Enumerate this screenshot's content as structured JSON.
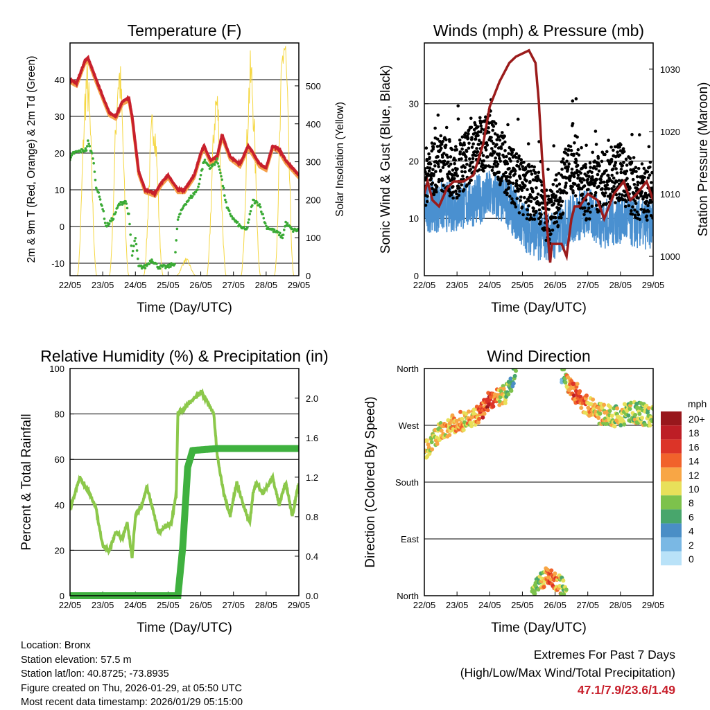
{
  "chart_data": [
    {
      "type": "line",
      "title": "Temperature (F)",
      "xlabel": "Time (Day/UTC)",
      "ylabel": "2m & 9m T (Red, Orange) & 2m Td (Green)",
      "ylabel_right": "Solar Insolation (Yellow)",
      "x_ticks": [
        "22/05",
        "23/05",
        "24/05",
        "25/05",
        "26/05",
        "27/05",
        "28/05",
        "29/05"
      ],
      "xlim": [
        0,
        7
      ],
      "ylim": [
        -13.4,
        50
      ],
      "y_ticks": [
        -10,
        0,
        10,
        20,
        30,
        40
      ],
      "ylim_right": [
        0,
        613
      ],
      "y_ticks_right": [
        0,
        100,
        200,
        300,
        400,
        500
      ],
      "grid": true,
      "series": [
        {
          "name": "2m T",
          "color": "#c8202c",
          "points": [
            [
              0,
              40
            ],
            [
              0.2,
              39
            ],
            [
              0.45,
              45
            ],
            [
              0.55,
              46
            ],
            [
              0.8,
              40
            ],
            [
              1.2,
              31
            ],
            [
              1.4,
              30
            ],
            [
              1.6,
              34
            ],
            [
              1.8,
              35
            ],
            [
              1.9,
              30
            ],
            [
              2.1,
              15
            ],
            [
              2.3,
              10
            ],
            [
              2.6,
              9
            ],
            [
              2.8,
              12
            ],
            [
              3.0,
              14
            ],
            [
              3.3,
              10
            ],
            [
              3.5,
              10
            ],
            [
              3.8,
              14
            ],
            [
              4.0,
              20
            ],
            [
              4.1,
              22
            ],
            [
              4.3,
              18
            ],
            [
              4.5,
              19
            ],
            [
              4.65,
              25
            ],
            [
              4.9,
              19
            ],
            [
              5.2,
              17
            ],
            [
              5.45,
              22
            ],
            [
              5.6,
              20
            ],
            [
              5.8,
              17
            ],
            [
              6.0,
              16
            ],
            [
              6.2,
              22
            ],
            [
              6.4,
              21
            ],
            [
              6.6,
              18
            ],
            [
              6.9,
              15
            ],
            [
              7,
              14
            ]
          ]
        },
        {
          "name": "2m Td",
          "color": "#3aaa35",
          "points": [
            [
              0,
              18
            ],
            [
              0.1,
              20
            ],
            [
              0.5,
              21
            ],
            [
              0.55,
              23
            ],
            [
              0.7,
              19
            ],
            [
              0.8,
              11
            ],
            [
              1.0,
              5
            ],
            [
              1.1,
              0
            ],
            [
              1.3,
              2
            ],
            [
              1.5,
              6
            ],
            [
              1.7,
              7
            ],
            [
              1.8,
              3
            ],
            [
              1.9,
              -8
            ],
            [
              2.0,
              -3
            ],
            [
              2.1,
              -11
            ],
            [
              2.3,
              -11
            ],
            [
              2.5,
              -9
            ],
            [
              2.7,
              -11
            ],
            [
              3.0,
              -11
            ],
            [
              3.2,
              -10
            ],
            [
              3.3,
              2
            ],
            [
              3.5,
              6
            ],
            [
              3.9,
              10
            ],
            [
              4.1,
              18
            ],
            [
              4.3,
              16
            ],
            [
              4.5,
              18
            ],
            [
              4.6,
              15
            ],
            [
              4.8,
              5
            ],
            [
              5.0,
              2
            ],
            [
              5.2,
              0
            ],
            [
              5.4,
              -1
            ],
            [
              5.6,
              7
            ],
            [
              5.8,
              6
            ],
            [
              6.0,
              0
            ],
            [
              6.4,
              -2
            ],
            [
              6.5,
              -3
            ],
            [
              6.6,
              1
            ],
            [
              6.8,
              -1
            ],
            [
              7,
              -1
            ]
          ]
        },
        {
          "name": "Solar Insolation",
          "color": "#f5d742",
          "axis": "right",
          "peaks": [
            [
              0.52,
              500
            ],
            [
              1.5,
              520
            ],
            [
              2.55,
              400
            ],
            [
              3.55,
              40
            ],
            [
              4.48,
              450
            ],
            [
              5.53,
              520
            ],
            [
              6.55,
              600
            ]
          ]
        }
      ]
    },
    {
      "type": "scatter",
      "title": "Winds (mph) & Pressure (mb)",
      "xlabel": "Time (Day/UTC)",
      "ylabel": "Sonic Wind & Gust (Blue, Black)",
      "ylabel_right": "Station Pressure (Maroon)",
      "x_ticks": [
        "22/05",
        "23/05",
        "24/05",
        "25/05",
        "26/05",
        "27/05",
        "28/05",
        "29/05"
      ],
      "xlim": [
        0,
        7
      ],
      "ylim": [
        0,
        40.6
      ],
      "y_ticks": [
        0,
        10,
        20,
        30
      ],
      "ylim_right": [
        996.9,
        1034.2
      ],
      "y_ticks_right": [
        1000,
        1010,
        1020,
        1030
      ],
      "grid": true,
      "series": [
        {
          "name": "Sonic Wind",
          "color": "#4a90d0",
          "points": [
            [
              0,
              12
            ],
            [
              1,
              12
            ],
            [
              1.5,
              13
            ],
            [
              2,
              14
            ],
            [
              2.5,
              13
            ],
            [
              3,
              9
            ],
            [
              3.5,
              7
            ],
            [
              4,
              7
            ],
            [
              4.5,
              10
            ],
            [
              5,
              11
            ],
            [
              5.5,
              9
            ],
            [
              6,
              10
            ],
            [
              6.5,
              9
            ],
            [
              7,
              9
            ]
          ]
        },
        {
          "name": "Gust",
          "color": "#000000",
          "points": [
            [
              0,
              17
            ],
            [
              0.5,
              20
            ],
            [
              1,
              18
            ],
            [
              1.5,
              22
            ],
            [
              2,
              24
            ],
            [
              2.5,
              19
            ],
            [
              3,
              15
            ],
            [
              3.5,
              14
            ],
            [
              3.8,
              10
            ],
            [
              4,
              12
            ],
            [
              4.5,
              20
            ],
            [
              5,
              14
            ],
            [
              5.5,
              17
            ],
            [
              6,
              18
            ],
            [
              6.5,
              14
            ],
            [
              7,
              15
            ]
          ]
        },
        {
          "name": "Station Pressure",
          "color": "#9b1b1b",
          "axis": "right",
          "points": [
            [
              0,
              1010
            ],
            [
              0.1,
              1012
            ],
            [
              0.25,
              1009
            ],
            [
              0.45,
              1008
            ],
            [
              0.7,
              1011
            ],
            [
              0.9,
              1012
            ],
            [
              1.2,
              1012
            ],
            [
              1.5,
              1013
            ],
            [
              1.8,
              1018
            ],
            [
              2.0,
              1024
            ],
            [
              2.3,
              1028
            ],
            [
              2.6,
              1031
            ],
            [
              2.8,
              1032
            ],
            [
              3.2,
              1033
            ],
            [
              3.4,
              1031
            ],
            [
              3.5,
              1025
            ],
            [
              3.6,
              1016
            ],
            [
              3.75,
              1005
            ],
            [
              3.85,
              999
            ],
            [
              3.9,
              1002
            ],
            [
              4.2,
              1002
            ],
            [
              4.35,
              1000
            ],
            [
              4.5,
              1006
            ],
            [
              4.6,
              1008
            ],
            [
              4.75,
              1008
            ],
            [
              5.0,
              1010
            ],
            [
              5.3,
              1009
            ],
            [
              5.5,
              1006
            ],
            [
              5.8,
              1010
            ],
            [
              6.1,
              1012
            ],
            [
              6.3,
              1009
            ],
            [
              6.5,
              1010
            ],
            [
              6.8,
              1012
            ],
            [
              7,
              1009
            ]
          ]
        }
      ]
    },
    {
      "type": "line",
      "title": "Relative Humidity (%) & Precipitation (in)",
      "xlabel": "Time (Day/UTC)",
      "ylabel": "Percent & Total Rainfall",
      "x_ticks": [
        "22/05",
        "23/05",
        "24/05",
        "25/05",
        "26/05",
        "27/05",
        "28/05",
        "29/05"
      ],
      "xlim": [
        0,
        7
      ],
      "ylim": [
        0,
        100
      ],
      "y_ticks": [
        0,
        20,
        40,
        60,
        80,
        100
      ],
      "ylim_right": [
        0,
        2.3
      ],
      "y_ticks_right": [
        "0.0",
        "0.4",
        "0.8",
        "1.2",
        "1.6",
        "2.0"
      ],
      "grid": true,
      "series": [
        {
          "name": "Relative Humidity",
          "color": "#8cc84b",
          "points": [
            [
              0,
              38
            ],
            [
              0.3,
              52
            ],
            [
              0.6,
              45
            ],
            [
              0.8,
              38
            ],
            [
              1.0,
              22
            ],
            [
              1.2,
              20
            ],
            [
              1.4,
              28
            ],
            [
              1.6,
              25
            ],
            [
              1.75,
              32
            ],
            [
              1.9,
              17
            ],
            [
              2.0,
              35
            ],
            [
              2.2,
              40
            ],
            [
              2.35,
              48
            ],
            [
              2.5,
              40
            ],
            [
              2.7,
              28
            ],
            [
              2.9,
              30
            ],
            [
              3.1,
              32
            ],
            [
              3.25,
              45
            ],
            [
              3.3,
              80
            ],
            [
              3.6,
              84
            ],
            [
              3.9,
              88
            ],
            [
              4.0,
              90
            ],
            [
              4.2,
              85
            ],
            [
              4.4,
              80
            ],
            [
              4.5,
              62
            ],
            [
              4.7,
              45
            ],
            [
              4.9,
              35
            ],
            [
              5.1,
              50
            ],
            [
              5.3,
              40
            ],
            [
              5.5,
              32
            ],
            [
              5.6,
              45
            ],
            [
              5.7,
              50
            ],
            [
              5.9,
              45
            ],
            [
              6.2,
              52
            ],
            [
              6.4,
              40
            ],
            [
              6.6,
              50
            ],
            [
              6.8,
              35
            ],
            [
              7,
              50
            ]
          ]
        },
        {
          "name": "Total Rainfall",
          "color": "#3fb13f",
          "axis": "right",
          "points": [
            [
              0,
              0
            ],
            [
              3.3,
              0
            ],
            [
              3.45,
              0.5
            ],
            [
              3.6,
              1.3
            ],
            [
              3.75,
              1.47
            ],
            [
              4.5,
              1.49
            ],
            [
              7,
              1.49
            ]
          ]
        }
      ]
    },
    {
      "type": "scatter",
      "title": "Wind Direction",
      "xlabel": "Time (Day/UTC)",
      "ylabel": "Direction (Colored By Speed)",
      "x_ticks": [
        "22/05",
        "23/05",
        "24/05",
        "25/05",
        "26/05",
        "27/05",
        "28/05",
        "29/05"
      ],
      "xlim": [
        0,
        7
      ],
      "ylim": [
        0,
        360
      ],
      "y_ticks": [
        "North",
        "East",
        "South",
        "West",
        "North"
      ],
      "grid": true,
      "series": [
        {
          "name": "Direction upper",
          "points": [
            [
              0,
              230,
              10
            ],
            [
              0.5,
              260,
              10
            ],
            [
              1,
              275,
              12
            ],
            [
              1.5,
              280,
              10
            ],
            [
              2,
              310,
              17
            ],
            [
              2.5,
              320,
              8
            ],
            [
              2.8,
              355,
              5
            ],
            [
              4.2,
              355,
              4
            ],
            [
              4.5,
              330,
              15
            ],
            [
              5,
              300,
              12
            ],
            [
              5.5,
              285,
              10
            ],
            [
              6,
              285,
              9
            ],
            [
              6.5,
              290,
              8
            ],
            [
              7,
              285,
              9
            ]
          ]
        },
        {
          "name": "Direction lower",
          "points": [
            [
              3.3,
              0,
              8
            ],
            [
              3.5,
              20,
              8
            ],
            [
              3.8,
              35,
              15
            ],
            [
              4.1,
              20,
              12
            ],
            [
              4.35,
              5,
              6
            ]
          ]
        }
      ],
      "legend": {
        "title": "mph",
        "position": "right",
        "labels": [
          "20+",
          "18",
          "16",
          "14",
          "12",
          "10",
          "8",
          "6",
          "4",
          "2",
          "0"
        ],
        "colors": [
          "#98171c",
          "#bd1e26",
          "#dc3428",
          "#f1622b",
          "#f8a645",
          "#e8e05a",
          "#7dc24c",
          "#48a66c",
          "#4a8ec6",
          "#7ab8e4",
          "#b9e2f8"
        ]
      }
    }
  ],
  "info": {
    "location": "Location: Bronx",
    "elevation": "Station elevation: 57.5 m",
    "latlon": "Station lat/lon: 40.8725; -73.8935",
    "created": "Figure created on Thu, 2026-01-29, at 05:50 UTC",
    "recent": "Most recent data timestamp: 2026/01/29 05:15:00"
  },
  "extremes": {
    "title": "Extremes For Past 7 Days",
    "subtitle": "(High/Low/Max Wind/Total Precipitation)",
    "values": "47.1/7.9/23.6/1.49"
  }
}
